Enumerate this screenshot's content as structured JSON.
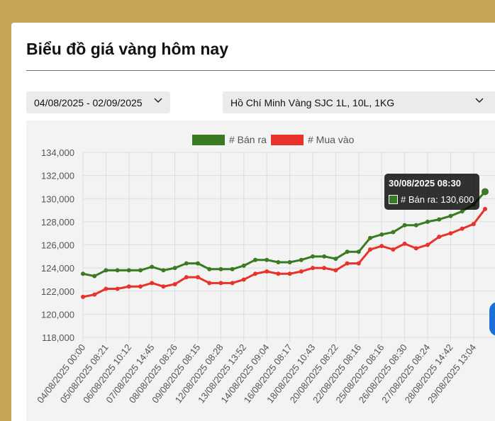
{
  "page": {
    "title": "Biểu đồ giá vàng hôm nay"
  },
  "filters": {
    "date_range": "04/08/2025 - 02/09/2025",
    "product": "Hồ Chí Minh Vàng SJC 1L, 10L, 1KG"
  },
  "icons": {
    "dropdown": "chevron-down-icon"
  },
  "colors": {
    "ban_ra": "#3a7a22",
    "mua_vao": "#e8322a",
    "background": "#c8a457"
  },
  "tooltip": {
    "title": "30/08/2025 08:30",
    "label": "# Bán ra: 130,600"
  },
  "chart_data": {
    "type": "line",
    "legend_position": "top",
    "grid": true,
    "ylim": [
      118000,
      134000
    ],
    "yticks": [
      "118,000",
      "120,000",
      "122,000",
      "124,000",
      "126,000",
      "128,000",
      "130,000",
      "132,000",
      "134,000"
    ],
    "x_tick_labels": [
      "04/08/2025 00:00",
      "05/08/2025 08:21",
      "06/08/2025 10:12",
      "07/08/2025 14:45",
      "08/08/2025 08:26",
      "09/08/2025 08:15",
      "12/08/2025 08:28",
      "13/08/2025 13:52",
      "14/08/2025 09:04",
      "16/08/2025 08:17",
      "18/08/2025 10:43",
      "20/08/2025 08:22",
      "22/08/2025 08:16",
      "25/08/2025 08:16",
      "26/08/2025 08:30",
      "27/08/2025 08:24",
      "28/08/2025 14:42",
      "29/08/2025 13:04"
    ],
    "series": [
      {
        "name": "# Bán ra",
        "values": [
          123500,
          123300,
          123800,
          123800,
          123800,
          123800,
          124100,
          123800,
          124000,
          124400,
          124400,
          123900,
          123900,
          123900,
          124200,
          124700,
          124700,
          124500,
          124500,
          124700,
          125000,
          125000,
          124800,
          125400,
          125400,
          126600,
          126900,
          127100,
          127700,
          127700,
          128000,
          128200,
          128500,
          128900,
          129500,
          130600
        ]
      },
      {
        "name": "# Mua vào",
        "values": [
          121500,
          121700,
          122200,
          122200,
          122400,
          122400,
          122700,
          122400,
          122600,
          123200,
          123200,
          122700,
          122700,
          122700,
          123000,
          123500,
          123700,
          123500,
          123500,
          123700,
          124000,
          124000,
          123800,
          124400,
          124400,
          125600,
          125900,
          125600,
          126100,
          125700,
          126000,
          126700,
          127000,
          127400,
          127800,
          129100
        ]
      }
    ]
  }
}
